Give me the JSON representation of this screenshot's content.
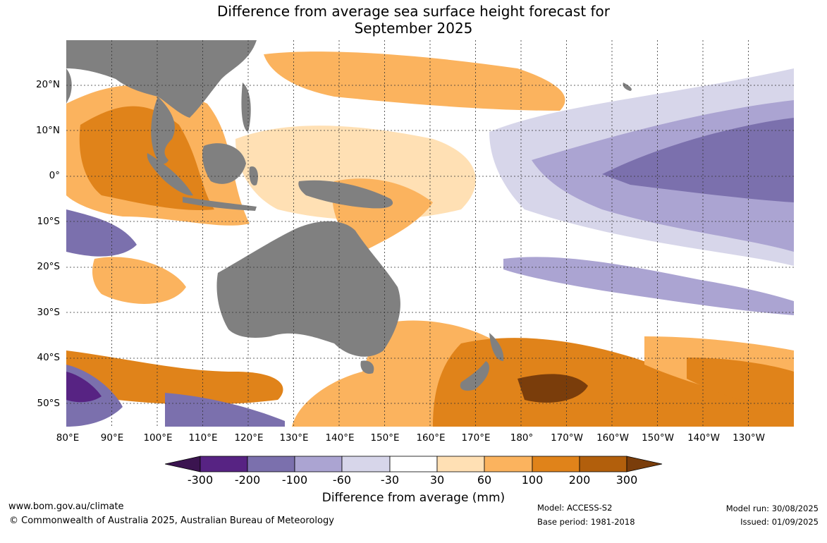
{
  "title": {
    "line1": "Difference from average sea surface height forecast for",
    "line2": "September 2025"
  },
  "map": {
    "region": "Indo-Pacific",
    "lon_range": [
      "80°E",
      "130°W"
    ],
    "lat_range": [
      "30°N",
      "55°S"
    ],
    "land_color": "#808080",
    "lat_labels": [
      "20°N",
      "10°N",
      "0°",
      "10°S",
      "20°S",
      "30°S",
      "40°S",
      "50°S"
    ],
    "lon_labels": [
      "80°E",
      "90°E",
      "100°E",
      "110°E",
      "120°E",
      "130°E",
      "140°E",
      "150°E",
      "160°E",
      "170°E",
      "180°",
      "170°W",
      "160°W",
      "150°W",
      "140°W",
      "130°W"
    ],
    "patterns": [
      "Positive anomalies (orange) over the eastern Indian Ocean, Maritime Continent and western Pacific",
      "Negative anomalies (purple) across the central and eastern equatorial Pacific",
      "Strong positive anomalies (dark orange to brown) in the Southern Ocean east of New Zealand"
    ]
  },
  "colorbar": {
    "title": "Difference from average (mm)",
    "tick_labels": [
      "-300",
      "-200",
      "-100",
      "-60",
      "-30",
      "30",
      "60",
      "100",
      "200",
      "300"
    ],
    "colors": [
      "#3b1450",
      "#572383",
      "#7b70ad",
      "#aba4d2",
      "#d7d6ea",
      "#ffffff",
      "#ffe0b4",
      "#fbb35e",
      "#e0831a",
      "#b25f0c",
      "#7a3d0b"
    ]
  },
  "footer": {
    "website": "www.bom.gov.au/climate",
    "copyright": "© Commonwealth of Australia 2025, Australian Bureau of Meteorology",
    "model": "Model: ACCESS-S2",
    "base_period": "Base period: 1981-2018",
    "model_run": "Model run: 30/08/2025",
    "issued": "Issued: 01/09/2025"
  }
}
